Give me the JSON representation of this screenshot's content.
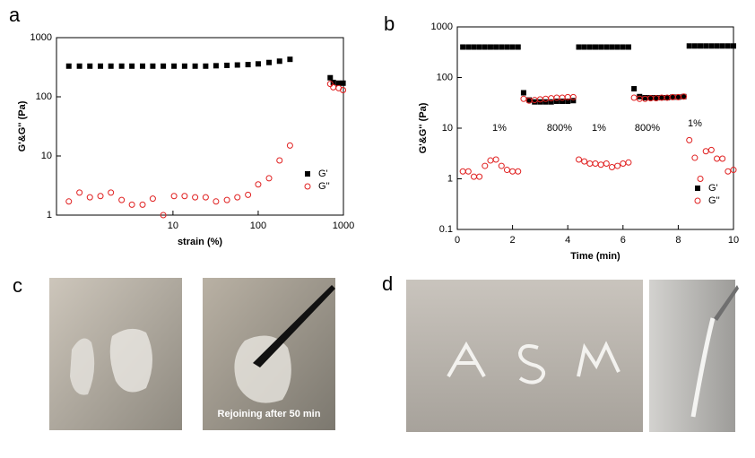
{
  "figure": {
    "panel_labels": [
      "a",
      "b",
      "c",
      "d"
    ],
    "photo_caption": "Rejoining after 50 min"
  },
  "chart_data": [
    {
      "type": "scatter",
      "xlabel": "strain (%)",
      "ylabel": "G'&G'' (Pa)",
      "log_x": true,
      "log_y": true,
      "legend": "lower right",
      "x": [
        0.6,
        0.8,
        1.06,
        1.41,
        1.87,
        2.5,
        3.3,
        4.4,
        5.8,
        7.7,
        10.3,
        13.7,
        18.2,
        24.2,
        32,
        43,
        57,
        76,
        100,
        134,
        178,
        236,
        700,
        760,
        880,
        990
      ],
      "xlim": [
        0.43,
        1000
      ],
      "xticks": [
        10,
        100,
        1000
      ],
      "ylim": [
        1,
        1000
      ],
      "yticks": [
        1,
        10,
        100,
        1000
      ],
      "series": [
        {
          "name": "G'",
          "color": "#000000",
          "marker": "square",
          "values": [
            330,
            330,
            330,
            330,
            330,
            330,
            330,
            330,
            330,
            330,
            330,
            330,
            330,
            330,
            335,
            340,
            345,
            350,
            360,
            380,
            400,
            430,
            210,
            175,
            170,
            170
          ]
        },
        {
          "name": "G''",
          "color": "#e02020",
          "marker": "open-circle",
          "values": [
            1.7,
            2.4,
            2.0,
            2.1,
            2.4,
            1.8,
            1.5,
            1.5,
            1.9,
            1.0,
            2.1,
            2.1,
            2.0,
            2.0,
            1.7,
            1.8,
            2.0,
            2.2,
            3.3,
            4.2,
            8.4,
            15,
            165,
            145,
            140,
            130
          ]
        }
      ]
    },
    {
      "type": "scatter",
      "xlabel": "Time (min)",
      "ylabel": "G'&G'' (Pa)",
      "log_x": false,
      "log_y": true,
      "legend": "lower right",
      "annotations": [
        "1%",
        "800%",
        "1%",
        "800%",
        "1%"
      ],
      "x": [
        0.2,
        0.4,
        0.6,
        0.8,
        1.0,
        1.2,
        1.4,
        1.6,
        1.8,
        2.0,
        2.2,
        2.4,
        2.6,
        2.8,
        3.0,
        3.2,
        3.4,
        3.6,
        3.8,
        4.0,
        4.2,
        4.4,
        4.6,
        4.8,
        5.0,
        5.2,
        5.4,
        5.6,
        5.8,
        6.0,
        6.2,
        6.4,
        6.6,
        6.8,
        7.0,
        7.2,
        7.4,
        7.6,
        7.8,
        8.0,
        8.2,
        8.4,
        8.6,
        8.8,
        9.0,
        9.2,
        9.4,
        9.6,
        9.8,
        10.0
      ],
      "xlim": [
        0,
        10
      ],
      "xticks": [
        0,
        2,
        4,
        6,
        8,
        10
      ],
      "ylim": [
        0.1,
        1000
      ],
      "yticks": [
        0.1,
        1,
        10,
        100,
        1000
      ],
      "series": [
        {
          "name": "G'",
          "color": "#000000",
          "marker": "square",
          "values": [
            400,
            400,
            400,
            400,
            400,
            400,
            400,
            400,
            400,
            400,
            400,
            50,
            36,
            33,
            33,
            33,
            33,
            34,
            34,
            34,
            35,
            400,
            400,
            400,
            400,
            400,
            400,
            400,
            400,
            400,
            400,
            60,
            42,
            40,
            40,
            40,
            40,
            40,
            41,
            41,
            42,
            420,
            420,
            420,
            420,
            420,
            420,
            420,
            420,
            420
          ]
        },
        {
          "name": "G''",
          "color": "#e02020",
          "marker": "open-circle",
          "values": [
            1.4,
            1.4,
            1.1,
            1.1,
            1.8,
            2.3,
            2.4,
            1.8,
            1.5,
            1.4,
            1.4,
            38,
            35,
            36,
            37,
            38,
            39,
            40,
            40,
            41,
            41,
            2.4,
            2.2,
            2.0,
            2.0,
            1.9,
            2.0,
            1.7,
            1.8,
            2.0,
            2.1,
            40,
            38,
            38,
            39,
            39,
            40,
            40,
            41,
            41,
            42,
            5.8,
            2.6,
            1.0,
            3.5,
            3.7,
            2.5,
            2.5,
            1.4,
            1.5
          ]
        }
      ]
    }
  ]
}
